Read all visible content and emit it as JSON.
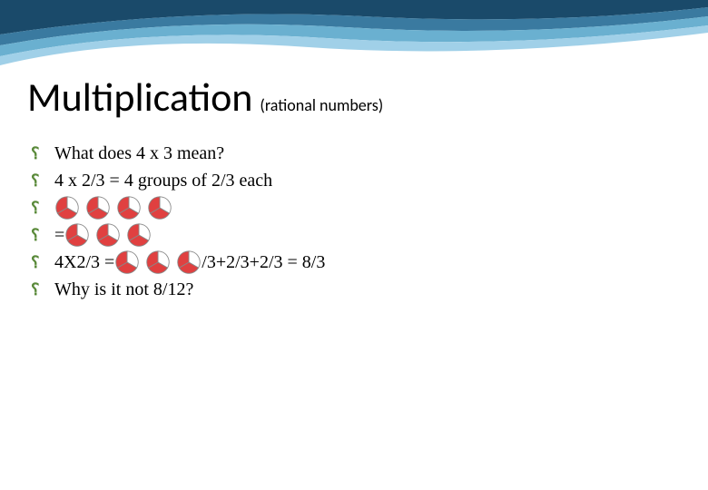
{
  "title": "Multiplication",
  "subtitle": "(rational numbers)",
  "bullets": {
    "b1": "What does 4 x 3 mean?",
    "b2": "4 x 2/3 = 4 groups of 2/3 each",
    "b3": "",
    "b4_prefix": " = ",
    "b5_prefix": "4X2/3 = ",
    "b5_suffix": "/3+2/3+2/3 = 8/3",
    "b6": "Why is it not 8/12?"
  },
  "pies": {
    "row1_count": 4,
    "row2_count": 3,
    "row3_count": 3,
    "slices": 3,
    "filled_slices": 2,
    "fill_color": "#e04040",
    "empty_color": "#ffffff",
    "stroke_color": "#888888"
  },
  "decoration": {
    "wave_colors": [
      "#1a4a6a",
      "#3a7aa0",
      "#6ab0d0",
      "#a0d0e8"
    ]
  },
  "bullet_color": "#5a8a3a"
}
